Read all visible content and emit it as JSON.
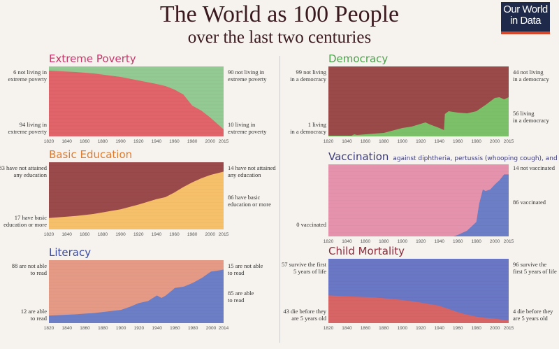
{
  "header": {
    "title": "The World as 100 People",
    "subtitle": "over the last two centuries",
    "logo": "Our World in Data"
  },
  "chart_data": [
    {
      "id": "poverty",
      "type": "area",
      "title": "Extreme Poverty",
      "title_color": "#c8356a",
      "ylim": [
        0,
        100
      ],
      "xlim": [
        1820,
        2015
      ],
      "x_ticks": [
        "1820",
        "1840",
        "1860",
        "1880",
        "1900",
        "1920",
        "1940",
        "1960",
        "1980",
        "2000",
        "2015"
      ],
      "series": [
        {
          "name": "living in extreme poverty",
          "color": "#e06469",
          "x": [
            1820,
            1850,
            1870,
            1900,
            1920,
            1940,
            1950,
            1960,
            1970,
            1980,
            1990,
            2000,
            2015
          ],
          "values": [
            94,
            92,
            90,
            85,
            80,
            75,
            72,
            67,
            60,
            44,
            37,
            27,
            10
          ]
        },
        {
          "name": "not living in extreme poverty",
          "color": "#93c993"
        }
      ],
      "labels": {
        "top_left": "6 not living in\nextreme poverty",
        "bottom_left": "94 living in\nextreme poverty",
        "top_right": "90 not living in\nextreme poverty",
        "bottom_right": "10 living in\nextreme poverty"
      }
    },
    {
      "id": "democracy",
      "type": "area",
      "title": "Democracy",
      "title_color": "#4aa24a",
      "ylim": [
        0,
        100
      ],
      "xlim": [
        1820,
        2015
      ],
      "x_ticks": [
        "1820",
        "1840",
        "1860",
        "1880",
        "1900",
        "1920",
        "1940",
        "1960",
        "1980",
        "2000",
        "2015"
      ],
      "series": [
        {
          "name": "living in a democracy",
          "color": "#7cc16a",
          "x": [
            1820,
            1845,
            1848,
            1851,
            1870,
            1880,
            1900,
            1910,
            1920,
            1925,
            1930,
            1940,
            1945,
            1946,
            1950,
            1960,
            1970,
            1980,
            1990,
            2000,
            2005,
            2010,
            2015
          ],
          "values": [
            1,
            1,
            3,
            2,
            4,
            5,
            12,
            14,
            18,
            20,
            17,
            12,
            9,
            32,
            36,
            34,
            33,
            36,
            45,
            55,
            56,
            53,
            56
          ]
        },
        {
          "name": "not living in a democracy",
          "color": "#9a4a48"
        }
      ],
      "labels": {
        "top_left": "99 not living\nin a democracy",
        "bottom_left": "1 living\nin a democracy",
        "top_right": "44 not living\nin a democracy",
        "bottom_right": "56 living\nin a democracy"
      }
    },
    {
      "id": "education",
      "type": "area",
      "title": "Basic Education",
      "title_color": "#e07a2c",
      "ylim": [
        0,
        100
      ],
      "xlim": [
        1820,
        2015
      ],
      "x_ticks": [
        "1820",
        "1840",
        "1860",
        "1880",
        "1900",
        "1920",
        "1940",
        "1960",
        "1980",
        "2000",
        "2015"
      ],
      "series": [
        {
          "name": "have basic education or more",
          "color": "#f6c06a",
          "x": [
            1820,
            1850,
            1870,
            1900,
            1920,
            1940,
            1950,
            1960,
            1970,
            1980,
            1990,
            2000,
            2015
          ],
          "values": [
            17,
            20,
            23,
            30,
            37,
            45,
            48,
            55,
            63,
            70,
            76,
            81,
            86
          ]
        },
        {
          "name": "have not attained any education",
          "color": "#9a4a4a"
        }
      ],
      "labels": {
        "top_left": "83 have not attained\nany education",
        "bottom_left": "17 have basic\neducation or more",
        "top_right": "14 have not attained\nany education",
        "bottom_right": "86 have basic\neducation or more"
      }
    },
    {
      "id": "vaccination",
      "type": "area",
      "title": "Vaccination",
      "subtitle": "against diphtheria, pertussis (whooping cough), and tetanus",
      "title_color": "#3a3a7a",
      "ylim": [
        0,
        100
      ],
      "xlim": [
        1820,
        2015
      ],
      "x_ticks": [
        "1820",
        "1840",
        "1860",
        "1880",
        "1900",
        "1920",
        "1940",
        "1960",
        "1980",
        "2000",
        "2015"
      ],
      "series": [
        {
          "name": "vaccinated",
          "color": "#6c7ec6",
          "x": [
            1820,
            1955,
            1960,
            1970,
            1980,
            1983,
            1987,
            1990,
            1995,
            2000,
            2005,
            2010,
            2015
          ],
          "values": [
            0,
            0,
            2,
            8,
            20,
            45,
            65,
            63,
            65,
            72,
            78,
            86,
            86
          ]
        },
        {
          "name": "not vaccinated",
          "color": "#e593ad"
        }
      ],
      "labels": {
        "top_left": "",
        "bottom_left": "0 vaccinated",
        "top_right": "14 not vaccinated",
        "bottom_right": "86 vaccinated"
      }
    },
    {
      "id": "literacy",
      "type": "area",
      "title": "Literacy",
      "title_color": "#3a4aa0",
      "ylim": [
        0,
        100
      ],
      "xlim": [
        1820,
        2014
      ],
      "x_ticks": [
        "1820",
        "1840",
        "1860",
        "1880",
        "1900",
        "1920",
        "1940",
        "1960",
        "1980",
        "2000",
        "2014"
      ],
      "series": [
        {
          "name": "are able to read",
          "color": "#6c7ec6",
          "x": [
            1820,
            1850,
            1870,
            1900,
            1910,
            1920,
            1930,
            1940,
            1945,
            1950,
            1960,
            1970,
            1980,
            1990,
            2000,
            2010,
            2014
          ],
          "values": [
            12,
            14,
            16,
            21,
            26,
            32,
            35,
            44,
            40,
            44,
            56,
            58,
            64,
            72,
            82,
            84,
            85
          ]
        },
        {
          "name": "are not able to read",
          "color": "#e59a86"
        }
      ],
      "labels": {
        "top_left": "88 are not able\nto read",
        "bottom_left": "12 are able\nto read",
        "top_right": "15 are not able\nto read",
        "bottom_right": "85 are able\nto read"
      }
    },
    {
      "id": "child_mortality",
      "type": "area",
      "title": "Child Mortality",
      "title_color": "#8a2a3a",
      "ylim": [
        0,
        100
      ],
      "xlim": [
        1820,
        2015
      ],
      "x_ticks": [
        "1820",
        "1840",
        "1860",
        "1880",
        "1900",
        "1920",
        "1940",
        "1960",
        "1980",
        "2000",
        "2015"
      ],
      "series": [
        {
          "name": "die before they are 5 years old",
          "color": "#d86565",
          "x": [
            1820,
            1850,
            1870,
            1900,
            1920,
            1940,
            1950,
            1960,
            1970,
            1980,
            1990,
            2000,
            2015
          ],
          "values": [
            43,
            41,
            40,
            36,
            32,
            27,
            22,
            17,
            13,
            10,
            8,
            7,
            4
          ]
        },
        {
          "name": "survive the first 5 years of life",
          "color": "#6a77c4"
        }
      ],
      "labels": {
        "top_left": "57 survive the first\n5 years of life",
        "bottom_left": "43 die before they\nare 5 years old",
        "top_right": "96 survive the\nfirst 5 years of life",
        "bottom_right": "4 die before they\nare 5 years old"
      }
    }
  ]
}
